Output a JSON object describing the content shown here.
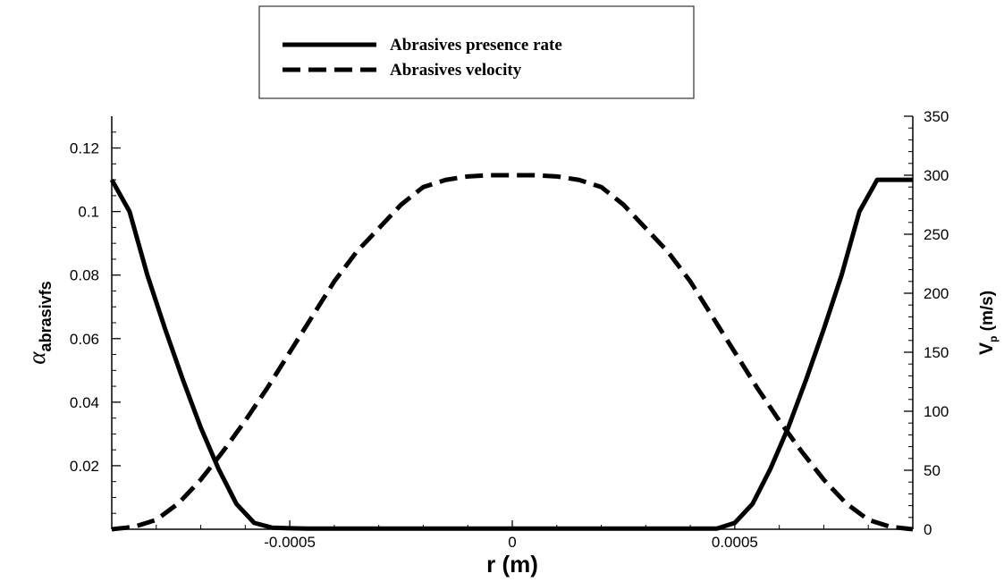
{
  "chart_data": {
    "type": "line",
    "xlabel": "r (m)",
    "ylabel_left": {
      "symbol": "α",
      "subscript": "abrasivfs"
    },
    "ylabel_right": {
      "main": "V",
      "subscript": "p",
      "unit": " (m/s)"
    },
    "xlim": [
      -0.0009,
      0.0009
    ],
    "ylim_left": [
      0,
      0.13
    ],
    "ylim_right": [
      0,
      350
    ],
    "x_ticks": [
      {
        "value": -0.0005,
        "label": "-0.0005"
      },
      {
        "value": 0,
        "label": "0"
      },
      {
        "value": 0.0005,
        "label": "0.0005"
      }
    ],
    "y_left_ticks": [
      {
        "value": 0.02,
        "label": "0.02"
      },
      {
        "value": 0.04,
        "label": "0.04"
      },
      {
        "value": 0.06,
        "label": "0.06"
      },
      {
        "value": 0.08,
        "label": "0.08"
      },
      {
        "value": 0.1,
        "label": "0.1"
      },
      {
        "value": 0.12,
        "label": "0.12"
      }
    ],
    "y_right_ticks": [
      {
        "value": 0,
        "label": "0"
      },
      {
        "value": 50,
        "label": "50"
      },
      {
        "value": 100,
        "label": "100"
      },
      {
        "value": 150,
        "label": "150"
      },
      {
        "value": 200,
        "label": "200"
      },
      {
        "value": 250,
        "label": "250"
      },
      {
        "value": 300,
        "label": "300"
      },
      {
        "value": 350,
        "label": "350"
      }
    ],
    "legend_position": "top-center",
    "series": [
      {
        "name": "Abrasives presence rate",
        "axis": "left",
        "style": "solid",
        "x": [
          -0.0009,
          -0.00086,
          -0.00082,
          -0.00078,
          -0.00074,
          -0.0007,
          -0.00066,
          -0.00062,
          -0.00058,
          -0.00054,
          -0.0005,
          -0.00046,
          -0.0004,
          -0.0003,
          -0.0002,
          -0.0001,
          0,
          0.0001,
          0.0002,
          0.0003,
          0.0004,
          0.00046,
          0.0005,
          0.00054,
          0.00058,
          0.00062,
          0.00066,
          0.0007,
          0.00074,
          0.00078,
          0.00082,
          0.00086,
          0.0009
        ],
        "values": [
          0.11,
          0.1,
          0.08,
          0.063,
          0.047,
          0.032,
          0.019,
          0.008,
          0.002,
          0.0005,
          0.0003,
          0.0002,
          0.0002,
          0.0002,
          0.0002,
          0.0002,
          0.0002,
          0.0002,
          0.0002,
          0.0002,
          0.0002,
          0.0002,
          0.002,
          0.008,
          0.019,
          0.032,
          0.047,
          0.063,
          0.08,
          0.1,
          0.11,
          0.11,
          0.11
        ]
      },
      {
        "name": "Abrasives velocity",
        "axis": "right",
        "style": "dashed",
        "x": [
          -0.0009,
          -0.00085,
          -0.0008,
          -0.00075,
          -0.0007,
          -0.00065,
          -0.0006,
          -0.00055,
          -0.0005,
          -0.00045,
          -0.0004,
          -0.00035,
          -0.0003,
          -0.00025,
          -0.0002,
          -0.00015,
          -0.0001,
          -5e-05,
          0,
          5e-05,
          0.0001,
          0.00015,
          0.0002,
          0.00025,
          0.0003,
          0.00035,
          0.0004,
          0.00045,
          0.0005,
          0.00055,
          0.0006,
          0.00065,
          0.0007,
          0.00075,
          0.0008,
          0.00085,
          0.0009
        ],
        "values": [
          0,
          2,
          8,
          22,
          42,
          66,
          92,
          120,
          150,
          180,
          210,
          235,
          255,
          275,
          290,
          296,
          299,
          300,
          300,
          300,
          299,
          296,
          290,
          275,
          255,
          235,
          210,
          180,
          150,
          120,
          92,
          66,
          42,
          22,
          8,
          2,
          0
        ]
      }
    ]
  }
}
